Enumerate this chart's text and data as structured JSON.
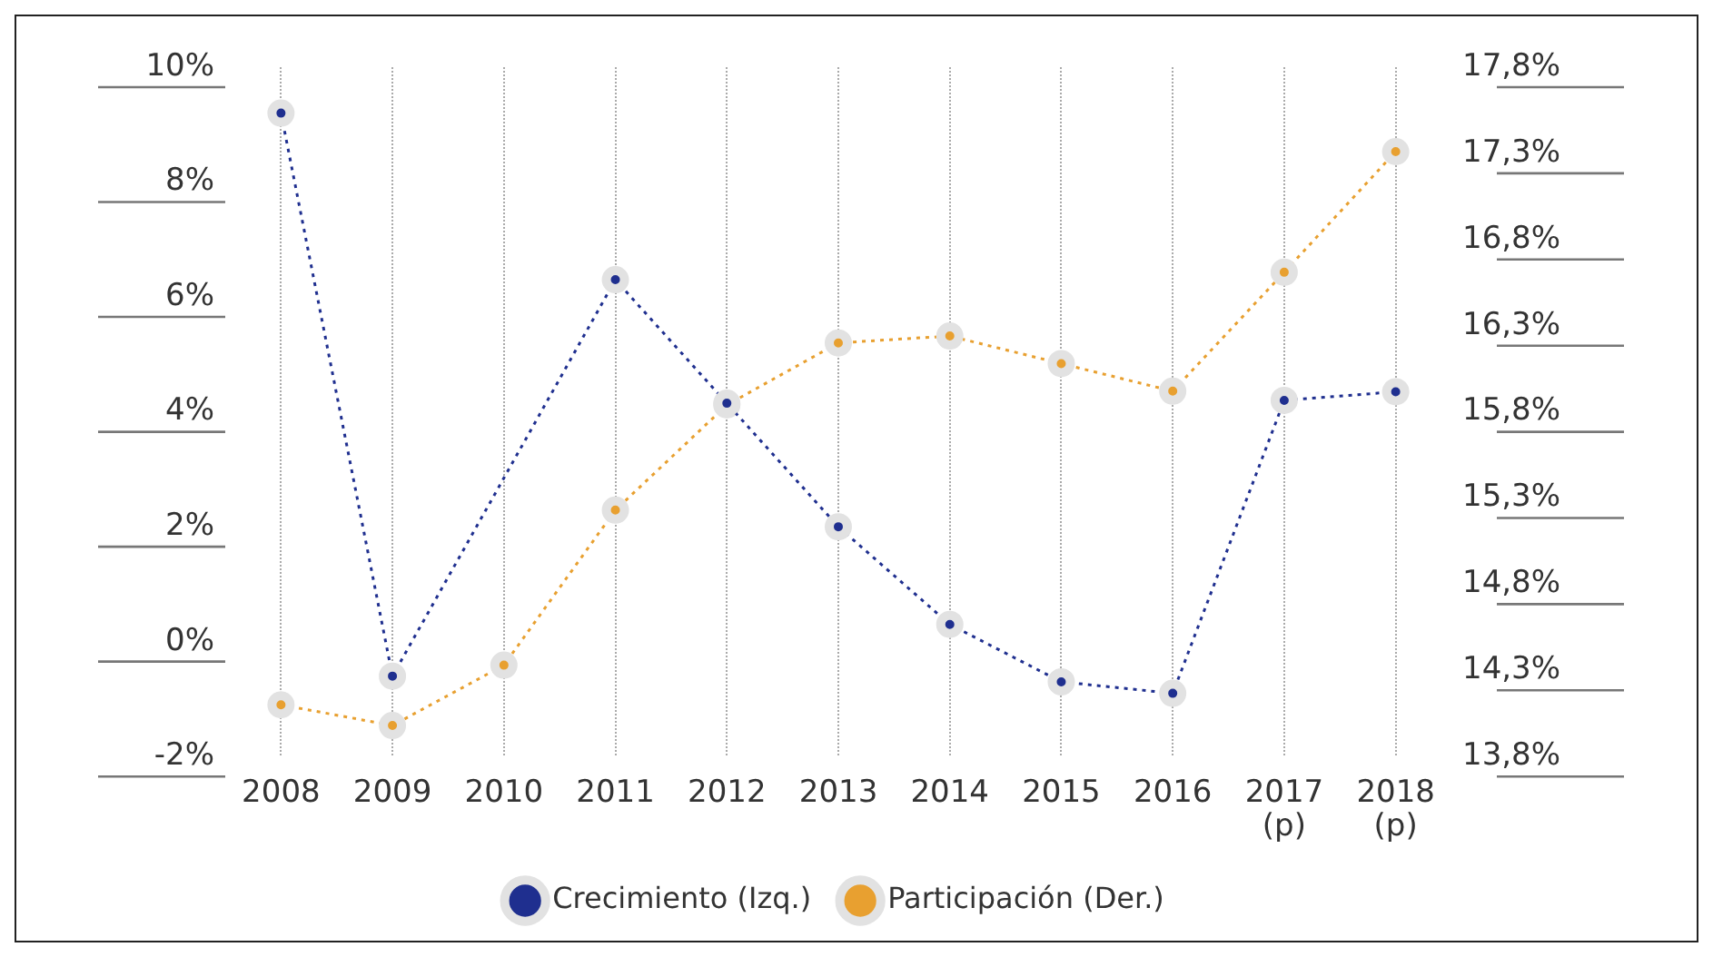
{
  "chart_data": {
    "type": "line",
    "categories": [
      "2008",
      "2009",
      "2010",
      "2011",
      "2012",
      "2013",
      "2014",
      "2015",
      "2016",
      "2017\n(p)",
      "2018\n(p)"
    ],
    "series": [
      {
        "name": "Crecimiento (Izq.)",
        "color": "#1f2f8f",
        "values": [
          9.2,
          -0.6,
          null,
          6.3,
          4.15,
          2.0,
          0.3,
          -0.7,
          -0.9,
          4.2,
          4.35
        ]
      },
      {
        "name": "Participación (Der.)",
        "color": "#e8a030",
        "axis": "y2",
        "values": [
          14.1,
          13.98,
          14.33,
          15.23,
          15.84,
          16.2,
          16.24,
          16.08,
          15.92,
          16.61,
          17.31
        ]
      }
    ],
    "ylim": [
      -2,
      10
    ],
    "yticks": [
      {
        "value": -2,
        "label": "-2%"
      },
      {
        "value": 0,
        "label": "0%"
      },
      {
        "value": 2,
        "label": "2%"
      },
      {
        "value": 4,
        "label": "4%"
      },
      {
        "value": 6,
        "label": "6%"
      },
      {
        "value": 8,
        "label": "8%"
      },
      {
        "value": 10,
        "label": "10%"
      }
    ],
    "y2lim": [
      13.8,
      17.8
    ],
    "y2ticks": [
      {
        "value": 13.8,
        "label": "13,8%"
      },
      {
        "value": 14.3,
        "label": "14,3%"
      },
      {
        "value": 14.8,
        "label": "14,8%"
      },
      {
        "value": 15.3,
        "label": "15,3%"
      },
      {
        "value": 15.8,
        "label": "15,8%"
      },
      {
        "value": 16.3,
        "label": "16,3%"
      },
      {
        "value": 16.8,
        "label": "16,8%"
      },
      {
        "value": 17.3,
        "label": "17,3%"
      },
      {
        "value": 17.8,
        "label": "17,8%"
      }
    ],
    "grid": "x",
    "legend": "bottom",
    "marker": "circle",
    "line_style": "dotted"
  }
}
